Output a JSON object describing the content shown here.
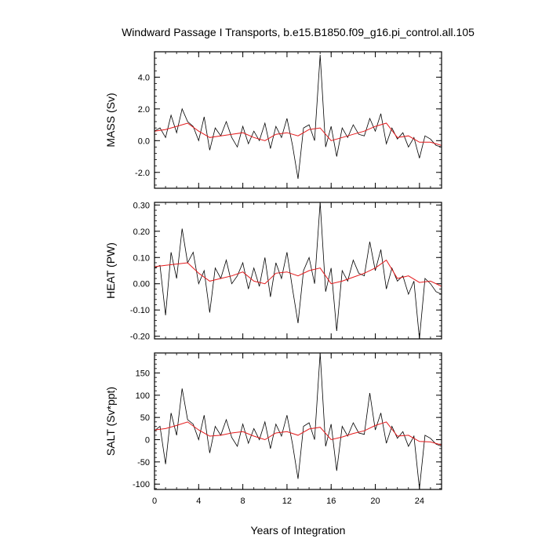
{
  "title": "Windward Passage I Transports, b.e15.B1850.f09_g16.pi_control.all.105",
  "xlabel": "Years of Integration",
  "colors": {
    "raw": "#000000",
    "smooth": "#e41a1c",
    "frame": "#000000"
  },
  "chart_data": [
    {
      "type": "line",
      "ylabel": "MASS (Sv)",
      "xlim": [
        0,
        26
      ],
      "ylim": [
        -3.0,
        5.6
      ],
      "yticks": [
        -2.0,
        0.0,
        2.0,
        4.0
      ],
      "ytick_labels": [
        "-2.0",
        "0.0",
        "2.0",
        "4.0"
      ],
      "xticks": [
        0,
        4,
        8,
        12,
        16,
        20,
        24
      ],
      "xtick_labels": [
        "0",
        "4",
        "8",
        "12",
        "16",
        "20",
        "24"
      ],
      "series": [
        {
          "x": [
            0,
            0.5,
            1,
            1.5,
            2,
            2.5,
            3,
            3.5,
            4,
            4.5,
            5,
            5.5,
            6,
            6.5,
            7,
            7.5,
            8,
            8.5,
            9,
            9.5,
            10,
            10.5,
            11,
            11.5,
            12,
            12.5,
            13,
            13.5,
            14,
            14.5,
            15,
            15.5,
            16,
            16.5,
            17,
            17.5,
            18,
            18.5,
            19,
            19.5,
            20,
            20.5,
            21,
            21.5,
            22,
            22.5,
            23,
            23.5,
            24,
            24.5,
            25,
            25.5,
            26
          ],
          "values": [
            0.6,
            0.8,
            0.2,
            1.6,
            0.5,
            2.0,
            1.2,
            0.9,
            0.0,
            1.5,
            -0.6,
            0.8,
            0.3,
            1.2,
            0.2,
            -0.4,
            0.9,
            -0.2,
            0.6,
            0.0,
            1.1,
            -0.5,
            0.9,
            0.2,
            1.4,
            -0.3,
            -2.4,
            0.8,
            1.0,
            0.0,
            5.4,
            -0.4,
            0.9,
            -1.0,
            0.8,
            0.2,
            1.0,
            0.4,
            0.3,
            1.4,
            0.6,
            1.7,
            -0.2,
            0.8,
            0.1,
            0.5,
            -0.4,
            0.2,
            -1.1,
            0.3,
            0.1,
            -0.3,
            -0.4
          ]
        },
        {
          "x": [
            0,
            1,
            2,
            3,
            4,
            5,
            6,
            7,
            8,
            9,
            10,
            11,
            12,
            13,
            14,
            15,
            16,
            17,
            18,
            19,
            20,
            21,
            22,
            23,
            24,
            25,
            26
          ],
          "values": [
            0.6,
            0.7,
            0.9,
            1.1,
            0.6,
            0.2,
            0.3,
            0.4,
            0.5,
            0.2,
            0.0,
            0.4,
            0.5,
            0.3,
            0.7,
            0.8,
            0.0,
            0.2,
            0.4,
            0.6,
            0.9,
            1.1,
            0.2,
            0.3,
            -0.1,
            -0.1,
            -0.3
          ]
        }
      ]
    },
    {
      "type": "line",
      "ylabel": "HEAT (PW)",
      "xlim": [
        0,
        26
      ],
      "ylim": [
        -0.21,
        0.31
      ],
      "yticks": [
        -0.2,
        -0.1,
        0.0,
        0.1,
        0.2,
        0.3
      ],
      "ytick_labels": [
        "-0.20",
        "-0.10",
        "0.00",
        "0.10",
        "0.20",
        "0.30"
      ],
      "xticks": [
        0,
        4,
        8,
        12,
        16,
        20,
        24
      ],
      "xtick_labels": [
        "0",
        "4",
        "8",
        "12",
        "16",
        "20",
        "24"
      ],
      "series": [
        {
          "x": [
            0,
            0.5,
            1,
            1.5,
            2,
            2.5,
            3,
            3.5,
            4,
            4.5,
            5,
            5.5,
            6,
            6.5,
            7,
            7.5,
            8,
            8.5,
            9,
            9.5,
            10,
            10.5,
            11,
            11.5,
            12,
            12.5,
            13,
            13.5,
            14,
            14.5,
            15,
            15.5,
            16,
            16.5,
            17,
            17.5,
            18,
            18.5,
            19,
            19.5,
            20,
            20.5,
            21,
            21.5,
            22,
            22.5,
            23,
            23.5,
            24,
            24.5,
            25,
            25.5,
            26
          ],
          "values": [
            0.06,
            0.07,
            -0.12,
            0.12,
            0.02,
            0.21,
            0.08,
            0.12,
            0.0,
            0.05,
            -0.11,
            0.06,
            0.02,
            0.09,
            0.0,
            0.03,
            0.08,
            -0.02,
            0.06,
            -0.01,
            0.1,
            -0.05,
            0.08,
            0.02,
            0.12,
            -0.02,
            -0.15,
            0.05,
            0.1,
            0.0,
            0.31,
            -0.03,
            0.06,
            -0.18,
            0.05,
            0.01,
            0.09,
            0.04,
            0.03,
            0.16,
            0.05,
            0.13,
            -0.02,
            0.06,
            0.01,
            0.03,
            -0.04,
            0.01,
            -0.21,
            0.02,
            0.0,
            -0.03,
            -0.04
          ]
        },
        {
          "x": [
            0,
            1,
            2,
            3,
            4,
            5,
            6,
            7,
            8,
            9,
            10,
            11,
            12,
            13,
            14,
            15,
            16,
            17,
            18,
            19,
            20,
            21,
            22,
            23,
            24,
            25,
            26
          ],
          "values": [
            0.065,
            0.07,
            0.075,
            0.08,
            0.04,
            0.01,
            0.02,
            0.03,
            0.045,
            0.01,
            0.0,
            0.04,
            0.045,
            0.03,
            0.05,
            0.06,
            0.0,
            0.01,
            0.025,
            0.04,
            0.06,
            0.09,
            0.02,
            0.03,
            0.005,
            0.01,
            -0.01
          ]
        }
      ]
    },
    {
      "type": "line",
      "ylabel": "SALT (Sv*ppt)",
      "xlim": [
        0,
        26
      ],
      "ylim": [
        -112,
        195
      ],
      "yticks": [
        -100,
        -50,
        0,
        50,
        100,
        150
      ],
      "ytick_labels": [
        "-100",
        "-50",
        "0",
        "50",
        "100",
        "150"
      ],
      "xticks": [
        0,
        4,
        8,
        12,
        16,
        20,
        24
      ],
      "xtick_labels": [
        "0",
        "4",
        "8",
        "12",
        "16",
        "20",
        "24"
      ],
      "series": [
        {
          "x": [
            0,
            0.5,
            1,
            1.5,
            2,
            2.5,
            3,
            3.5,
            4,
            4.5,
            5,
            5.5,
            6,
            6.5,
            7,
            7.5,
            8,
            8.5,
            9,
            9.5,
            10,
            10.5,
            11,
            11.5,
            12,
            12.5,
            13,
            13.5,
            14,
            14.5,
            15,
            15.5,
            16,
            16.5,
            17,
            17.5,
            18,
            18.5,
            19,
            19.5,
            20,
            20.5,
            21,
            21.5,
            22,
            22.5,
            23,
            23.5,
            24,
            24.5,
            25,
            25.5,
            26
          ],
          "values": [
            20,
            30,
            -55,
            60,
            10,
            115,
            45,
            35,
            0,
            55,
            -30,
            30,
            10,
            45,
            5,
            -15,
            35,
            -8,
            25,
            0,
            40,
            -20,
            35,
            8,
            55,
            -10,
            -88,
            30,
            38,
            0,
            195,
            -15,
            35,
            -70,
            30,
            8,
            38,
            15,
            12,
            105,
            22,
            60,
            -8,
            30,
            3,
            18,
            -15,
            8,
            -110,
            10,
            3,
            -10,
            -15
          ]
        },
        {
          "x": [
            0,
            1,
            2,
            3,
            4,
            5,
            6,
            7,
            8,
            9,
            10,
            11,
            12,
            13,
            14,
            15,
            16,
            17,
            18,
            19,
            20,
            21,
            22,
            23,
            24,
            25,
            26
          ],
          "values": [
            22,
            25,
            32,
            40,
            22,
            8,
            10,
            15,
            18,
            8,
            0,
            15,
            18,
            10,
            24,
            28,
            0,
            6,
            14,
            20,
            32,
            40,
            8,
            10,
            -4,
            -5,
            -12
          ]
        }
      ]
    }
  ]
}
